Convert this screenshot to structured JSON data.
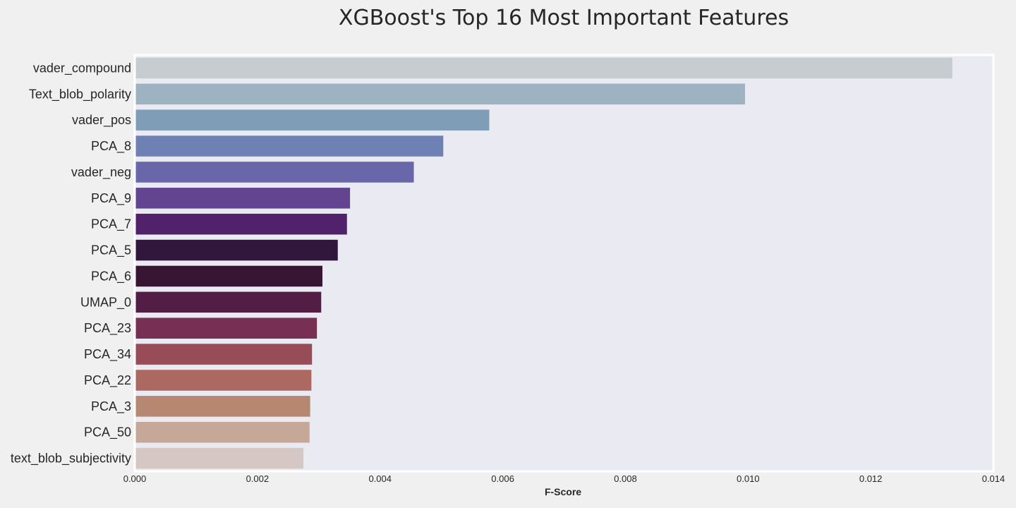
{
  "chart_data": {
    "type": "bar",
    "orientation": "horizontal",
    "title": "XGBoost's Top 16 Most Important Features",
    "xlabel": "F-Score",
    "ylabel": "",
    "xlim": [
      0,
      0.014
    ],
    "xticks": [
      "0.000",
      "0.002",
      "0.004",
      "0.006",
      "0.008",
      "0.010",
      "0.012",
      "0.014"
    ],
    "grid": false,
    "plot_background": "#eaeaf2",
    "page_background": "#f0f0f0",
    "categories": [
      "vader_compound",
      "Text_blob_polarity",
      "vader_pos",
      "PCA_8",
      "vader_neg",
      "PCA_9",
      "PCA_7",
      "PCA_5",
      "PCA_6",
      "UMAP_0",
      "PCA_23",
      "PCA_34",
      "PCA_22",
      "PCA_3",
      "PCA_50",
      "text_blob_subjectivity"
    ],
    "values": [
      0.01333,
      0.00995,
      0.00578,
      0.00503,
      0.00455,
      0.00351,
      0.00346,
      0.00331,
      0.00306,
      0.00304,
      0.00297,
      0.00289,
      0.00288,
      0.00286,
      0.00285,
      0.00275
    ],
    "colors": [
      "#c7ccd1",
      "#9db3c2",
      "#809db8",
      "#6f81b4",
      "#6966aa",
      "#624491",
      "#51226b",
      "#32173d",
      "#381532",
      "#531e45",
      "#772f53",
      "#974c58",
      "#ac6962",
      "#b78871",
      "#c6a899",
      "#d5c7c3"
    ]
  }
}
